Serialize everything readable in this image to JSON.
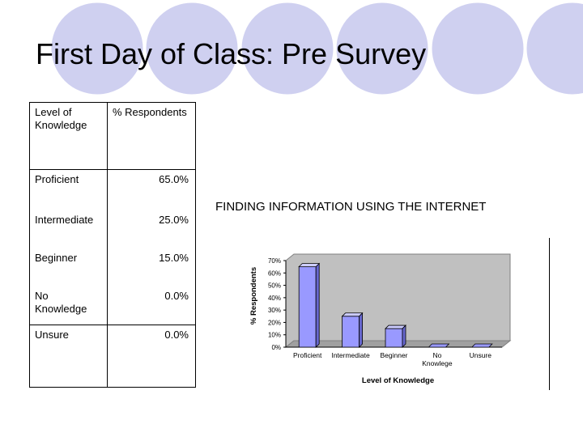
{
  "slide": {
    "title": "First Day of Class: Pre Survey",
    "accent_circle_color": "#cfd0f0",
    "accent_circle_outline": "#ffffff"
  },
  "table": {
    "headers": [
      "Level of Knowledge",
      "% Respondents"
    ],
    "rows": [
      {
        "level": "Proficient",
        "pct": "65.0%"
      },
      {
        "level": "Intermediate",
        "pct": "25.0%"
      },
      {
        "level": "Beginner",
        "pct": "15.0%"
      },
      {
        "level": "No Knowledge",
        "pct": "0.0%"
      },
      {
        "level": "Unsure",
        "pct": "0.0%"
      }
    ]
  },
  "chart_data": {
    "type": "bar",
    "title": "FINDING INFORMATION USING THE INTERNET",
    "categories": [
      "Proficient",
      "Intermediate",
      "Beginner",
      "No Knowlege",
      "Unsure"
    ],
    "values": [
      65,
      25,
      15,
      0,
      0
    ],
    "xlabel": "Level of Knowledge",
    "ylabel": "% Respondents",
    "ylim": [
      0,
      70
    ],
    "yticks": [
      "0%",
      "10%",
      "20%",
      "30%",
      "40%",
      "50%",
      "60%",
      "70%"
    ],
    "grid": false,
    "legend": "none",
    "bar_color": "#9999ff",
    "plot_bg": "#c0c0c0"
  }
}
